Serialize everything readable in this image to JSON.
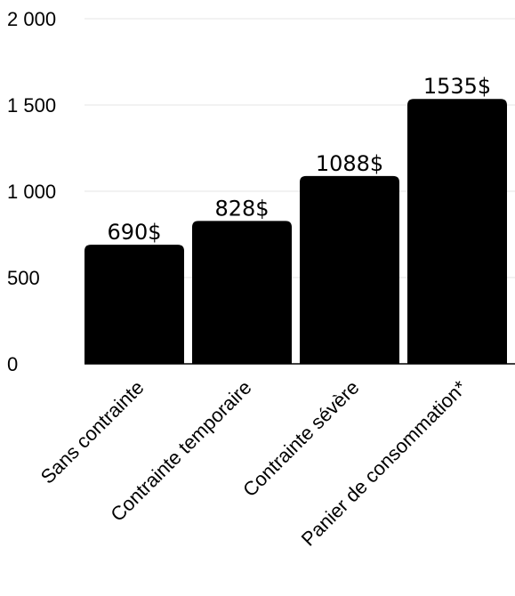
{
  "chart_data": {
    "type": "bar",
    "categories": [
      "Sans contrainte",
      "Contrainte temporaire",
      "Contrainte sévère",
      "Panier de consommation*"
    ],
    "values": [
      690,
      828,
      1088,
      1535
    ],
    "data_labels": [
      "690$",
      "828$",
      "1088$",
      "1535$"
    ],
    "title": "",
    "xlabel": "",
    "ylabel": "",
    "ylim": [
      0,
      2000
    ],
    "yticks": [
      0,
      500,
      1000,
      1500,
      2000
    ],
    "ytick_labels": [
      "0",
      "500",
      "1 000",
      "1 500",
      "2 000"
    ],
    "grid": true,
    "bar_color": "#000000",
    "grid_color": "#e6e6e6"
  }
}
